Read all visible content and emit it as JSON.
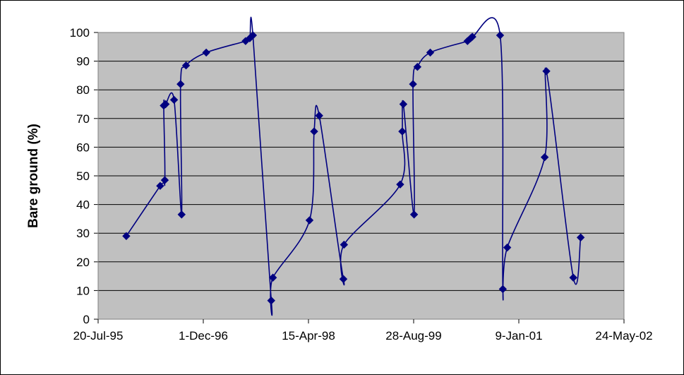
{
  "chart_data": {
    "type": "scatter",
    "title": "",
    "xlabel": "",
    "ylabel": "Bare ground (%)",
    "x_ticks": [
      "20-Jul-95",
      "1-Dec-96",
      "15-Apr-98",
      "28-Aug-99",
      "9-Jan-01",
      "24-May-02"
    ],
    "x_range": [
      "1995-07-20",
      "2002-05-24"
    ],
    "y_ticks": [
      0,
      10,
      20,
      30,
      40,
      50,
      60,
      70,
      80,
      90,
      100
    ],
    "ylim": [
      0,
      100
    ],
    "grid": "horizontal",
    "plot_background": "#c0c0c0",
    "line_style": "smoothed",
    "series": [
      {
        "color": "#000080",
        "marker": "diamond",
        "points": [
          {
            "x": "1995-12-01",
            "y": 29
          },
          {
            "x": "1996-05-10",
            "y": 46.5
          },
          {
            "x": "1996-06-01",
            "y": 48.5
          },
          {
            "x": "1996-05-27",
            "y": 74.5
          },
          {
            "x": "1996-06-05",
            "y": 75
          },
          {
            "x": "1996-07-15",
            "y": 76.5
          },
          {
            "x": "1996-08-20",
            "y": 36.5
          },
          {
            "x": "1996-08-15",
            "y": 82
          },
          {
            "x": "1996-09-10",
            "y": 88.5
          },
          {
            "x": "1996-12-15",
            "y": 93
          },
          {
            "x": "1997-06-20",
            "y": 97
          },
          {
            "x": "1997-07-10",
            "y": 98
          },
          {
            "x": "1997-07-25",
            "y": 99
          },
          {
            "x": "1997-10-20",
            "y": 6.5
          },
          {
            "x": "1997-10-28",
            "y": 14.5
          },
          {
            "x": "1998-04-20",
            "y": 34.5
          },
          {
            "x": "1998-05-12",
            "y": 65.5
          },
          {
            "x": "1998-06-05",
            "y": 71
          },
          {
            "x": "1998-09-28",
            "y": 14
          },
          {
            "x": "1998-10-01",
            "y": 26
          },
          {
            "x": "1999-06-25",
            "y": 47
          },
          {
            "x": "1999-07-05",
            "y": 65.5
          },
          {
            "x": "1999-07-10",
            "y": 75
          },
          {
            "x": "1999-08-30",
            "y": 36.5
          },
          {
            "x": "1999-08-25",
            "y": 82
          },
          {
            "x": "1999-09-15",
            "y": 88
          },
          {
            "x": "1999-11-15",
            "y": 93
          },
          {
            "x": "2000-05-10",
            "y": 97
          },
          {
            "x": "2000-05-25",
            "y": 98
          },
          {
            "x": "2000-06-02",
            "y": 98.5
          },
          {
            "x": "2000-10-12",
            "y": 99
          },
          {
            "x": "2000-10-25",
            "y": 10.5
          },
          {
            "x": "2000-11-15",
            "y": 25
          },
          {
            "x": "2001-05-12",
            "y": 56.5
          },
          {
            "x": "2001-05-20",
            "y": 86.5
          },
          {
            "x": "2001-09-25",
            "y": 14.5
          },
          {
            "x": "2001-10-30",
            "y": 28.5
          }
        ]
      }
    ]
  }
}
